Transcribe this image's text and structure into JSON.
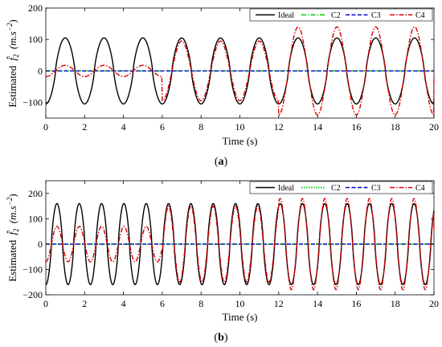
{
  "chart_data": [
    {
      "type": "line",
      "panel_label": "a",
      "xlabel": "Time (s)",
      "ylabel_text": "Estimated",
      "ylabel_symbol": "f̂",
      "ylabel_sub": "2",
      "ylabel_unit_open": "(m.s",
      "ylabel_unit_exp": "−2",
      "ylabel_unit_close": ")",
      "xlim": [
        0,
        20
      ],
      "ylim": [
        -150,
        200
      ],
      "xticks": [
        "0",
        "2",
        "4",
        "6",
        "8",
        "10",
        "12",
        "14",
        "16",
        "18",
        "20"
      ],
      "yticks": [
        "−100",
        "0",
        "100",
        "200"
      ],
      "ytick_values": [
        -100,
        0,
        100,
        200
      ],
      "legend_position": "top-right",
      "grid": false,
      "series": [
        {
          "name": "Ideal",
          "color": "#000000",
          "style": "solid",
          "model": "sine",
          "amplitude": 105,
          "period_s": 2,
          "phase_deg": 90
        },
        {
          "name": "C2",
          "color": "#00c800",
          "style": "dashdot",
          "model": "const",
          "value": 0
        },
        {
          "name": "C3",
          "color": "#0000cc",
          "style": "dashed",
          "model": "const",
          "value": 0
        },
        {
          "name": "C4",
          "color": "#dd0000",
          "style": "dashdot",
          "model": "segmented",
          "period_s": 2,
          "phase_deg": 90,
          "amplitude_segments": [
            {
              "from": 0,
              "to": 6,
              "amplitude": 18
            },
            {
              "from": 6,
              "to": 12,
              "amplitude": 95
            },
            {
              "from": 12,
              "to": 20,
              "amplitude": 140
            }
          ]
        }
      ]
    },
    {
      "type": "line",
      "panel_label": "b",
      "xlabel": "Time (s)",
      "ylabel_text": "Estimated",
      "ylabel_symbol": "f̂",
      "ylabel_sub": "2",
      "ylabel_unit_open": "(m.s",
      "ylabel_unit_exp": "−2",
      "ylabel_unit_close": ")",
      "xlim": [
        0,
        20
      ],
      "ylim": [
        -200,
        250
      ],
      "xticks": [
        "0",
        "2",
        "4",
        "6",
        "8",
        "10",
        "12",
        "14",
        "16",
        "18",
        "20"
      ],
      "yticks": [
        "−200",
        "−100",
        "0",
        "100",
        "200"
      ],
      "ytick_values": [
        -200,
        -100,
        0,
        100,
        200
      ],
      "legend_position": "top-right",
      "grid": false,
      "series": [
        {
          "name": "Ideal",
          "color": "#000000",
          "style": "solid",
          "model": "sine",
          "amplitude": 160,
          "period_s": 1.15,
          "phase_deg": 90
        },
        {
          "name": "C2",
          "color": "#00c800",
          "style": "dotted",
          "model": "const",
          "value": 0
        },
        {
          "name": "C3",
          "color": "#0000cc",
          "style": "dashed",
          "model": "const",
          "value": 0
        },
        {
          "name": "C4",
          "color": "#dd0000",
          "style": "dashdot",
          "model": "segmented",
          "period_s": 1.15,
          "phase_deg": 90,
          "amplitude_segments": [
            {
              "from": 0,
              "to": 6,
              "amplitude": 70
            },
            {
              "from": 6,
              "to": 12,
              "amplitude": 150
            },
            {
              "from": 12,
              "to": 20,
              "amplitude": 180
            }
          ]
        }
      ]
    }
  ]
}
